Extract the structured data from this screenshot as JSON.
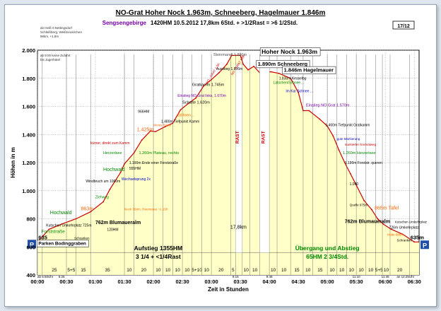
{
  "header": {
    "title": "NO-Grat Hoher Nock 1.963m, Schneeberg, Hagelmauer 1.846m",
    "subtitle_group": "Sengsengebirge",
    "subtitle_rest": "1420HM    10.5.2012    17,8km    6Std. + >1/2Rast = >6 1/2Std.",
    "page_badge": "17/12"
  },
  "side_notes": {
    "top_left": [
      "ab Heiß 0.Nettingsdorf",
      "Schleißberg, Weißneukirchen",
      "96km, +1,8m"
    ],
    "note2": [
      "ab 9:00 keine Zufahrt",
      "bis Jagerhütel"
    ]
  },
  "colors": {
    "profile_fill": "#ffffc8",
    "profile_line": "#cc0000",
    "bar_fill": "#f5f5c0",
    "grid": "#888888",
    "label_green": "#008800",
    "label_orange": "#ff6600",
    "label_purple": "#7700aa",
    "label_blue": "#0000cc",
    "label_red": "#cc0000"
  },
  "chart_data": {
    "type": "area",
    "ylabel": "Höhen in m",
    "xlabel": "Zeit in Stunden",
    "ylim": [
      400,
      2000
    ],
    "xlim": [
      0,
      395
    ],
    "yticks": [
      "400",
      "600",
      "800",
      "1.000",
      "1.200",
      "1.400",
      "1.600",
      "1.800",
      "2.000"
    ],
    "ytick_values": [
      400,
      600,
      800,
      1000,
      1200,
      1400,
      1600,
      1800,
      2000
    ],
    "xticks": [
      "00:00",
      "00:30",
      "01:00",
      "01:30",
      "02:00",
      "02:30",
      "03:00",
      "03:30",
      "04:00",
      "04:30",
      "05:00",
      "05:30",
      "06:00",
      "06:30"
    ],
    "xtick_values": [
      0,
      30,
      60,
      90,
      120,
      150,
      180,
      210,
      240,
      270,
      300,
      330,
      360,
      390
    ],
    "time_labels": [
      "ab 5:50Uhr",
      "6:25",
      "9:15",
      "9:48",
      "11:10",
      "11:45",
      "an 12:25Uhr"
    ],
    "time_label_values": [
      0,
      25,
      205,
      240,
      330,
      360,
      390
    ],
    "profile": [
      {
        "t": 0,
        "h": 635
      },
      {
        "t": 6,
        "h": 680
      },
      {
        "t": 12,
        "h": 725
      },
      {
        "t": 25,
        "h": 762
      },
      {
        "t": 40,
        "h": 800
      },
      {
        "t": 55,
        "h": 850
      },
      {
        "t": 68,
        "h": 920
      },
      {
        "t": 75,
        "h": 1010
      },
      {
        "t": 86,
        "h": 1130
      },
      {
        "t": 90,
        "h": 1190
      },
      {
        "t": 100,
        "h": 1270
      },
      {
        "t": 108,
        "h": 1360
      },
      {
        "t": 117,
        "h": 1425
      },
      {
        "t": 122,
        "h": 1420
      },
      {
        "t": 132,
        "h": 1455
      },
      {
        "t": 140,
        "h": 1480
      },
      {
        "t": 148,
        "h": 1575
      },
      {
        "t": 156,
        "h": 1620
      },
      {
        "t": 164,
        "h": 1660
      },
      {
        "t": 172,
        "h": 1745
      },
      {
        "t": 180,
        "h": 1790
      },
      {
        "t": 188,
        "h": 1840
      },
      {
        "t": 196,
        "h": 1900
      },
      {
        "t": 201,
        "h": 1963
      },
      {
        "t": 205,
        "h": 1963
      },
      {
        "t": 210,
        "h": 1963
      },
      {
        "t": 213,
        "h": 1900
      },
      {
        "t": 218,
        "h": 1860
      },
      {
        "t": 224,
        "h": 1885
      },
      {
        "t": 230,
        "h": 1840
      },
      {
        "t": 236,
        "h": 1846
      },
      {
        "t": 242,
        "h": 1846
      },
      {
        "t": 250,
        "h": 1835
      },
      {
        "t": 262,
        "h": 1800
      },
      {
        "t": 270,
        "h": 1700
      },
      {
        "t": 275,
        "h": 1570
      },
      {
        "t": 281,
        "h": 1570
      },
      {
        "t": 292,
        "h": 1510
      },
      {
        "t": 300,
        "h": 1460
      },
      {
        "t": 306,
        "h": 1390
      },
      {
        "t": 312,
        "h": 1290
      },
      {
        "t": 318,
        "h": 1200
      },
      {
        "t": 324,
        "h": 1120
      },
      {
        "t": 330,
        "h": 1040
      },
      {
        "t": 338,
        "h": 930
      },
      {
        "t": 346,
        "h": 865
      },
      {
        "t": 352,
        "h": 800
      },
      {
        "t": 358,
        "h": 762
      },
      {
        "t": 366,
        "h": 726
      },
      {
        "t": 378,
        "h": 690
      },
      {
        "t": 390,
        "h": 635
      },
      {
        "t": 395,
        "h": 635
      }
    ],
    "segments": [
      {
        "t0": 0,
        "t1": 5,
        "label": ""
      },
      {
        "t0": 5,
        "t1": 30,
        "label": "25"
      },
      {
        "t0": 30,
        "t1": 40,
        "label": "5+5"
      },
      {
        "t0": 40,
        "t1": 55,
        "label": "15"
      },
      {
        "t0": 55,
        "t1": 90,
        "label": "35"
      },
      {
        "t0": 90,
        "t1": 100,
        "label": "10"
      },
      {
        "t0": 100,
        "t1": 120,
        "label": "20"
      },
      {
        "t0": 120,
        "t1": 130,
        "label": "10"
      },
      {
        "t0": 130,
        "t1": 140,
        "label": "10"
      },
      {
        "t0": 140,
        "t1": 150,
        "label": "10"
      },
      {
        "t0": 150,
        "t1": 160,
        "label": "10"
      },
      {
        "t0": 160,
        "t1": 170,
        "label": "5+10"
      },
      {
        "t0": 170,
        "t1": 180,
        "label": "10"
      },
      {
        "t0": 180,
        "t1": 200,
        "label": "20"
      },
      {
        "t0": 200,
        "t1": 205,
        "label": "5"
      },
      {
        "t0": 205,
        "t1": 212,
        "label": ""
      },
      {
        "t0": 212,
        "t1": 220,
        "label": "10"
      },
      {
        "t0": 220,
        "t1": 230,
        "label": "10"
      },
      {
        "t0": 230,
        "t1": 240,
        "label": ""
      },
      {
        "t0": 240,
        "t1": 248,
        "label": "10"
      },
      {
        "t0": 248,
        "t1": 262,
        "label": "10"
      },
      {
        "t0": 262,
        "t1": 275,
        "label": "15"
      },
      {
        "t0": 275,
        "t1": 285,
        "label": "10"
      },
      {
        "t0": 285,
        "t1": 300,
        "label": "15"
      },
      {
        "t0": 300,
        "t1": 310,
        "label": "10"
      },
      {
        "t0": 310,
        "t1": 320,
        "label": "10"
      },
      {
        "t0": 320,
        "t1": 330,
        "label": "10"
      },
      {
        "t0": 330,
        "t1": 340,
        "label": "10"
      },
      {
        "t0": 340,
        "t1": 350,
        "label": "10"
      },
      {
        "t0": 350,
        "t1": 357,
        "label": "5+5"
      },
      {
        "t0": 357,
        "t1": 365,
        "label": "10"
      },
      {
        "t0": 365,
        "t1": 385,
        "label": "20"
      },
      {
        "t0": 385,
        "t1": 395,
        "label": ""
      }
    ],
    "rast_zones": [
      {
        "t0": 205,
        "t1": 212
      },
      {
        "t0": 230,
        "t1": 240
      }
    ],
    "rast_label": "RAST",
    "distance_label": "17,8km",
    "summary_left": [
      "Aufstieg 1355HM",
      "3 1/4 + <1/4Rast"
    ],
    "summary_right": [
      "Übergang und Abstieg",
      "65HM   2 3/4Std."
    ],
    "annotations": [
      {
        "t": 232,
        "h": 1975,
        "text": "Hoher Nock 1.963m",
        "color": "#000000",
        "size": 8.5,
        "bold": true,
        "box": true
      },
      {
        "t": 228,
        "h": 1890,
        "text": "1.890m Schneeberg",
        "color": "#000000",
        "size": 7.5,
        "bold": true,
        "box": true
      },
      {
        "t": 255,
        "h": 1846,
        "text": "1.846m Hagelmauer",
        "color": "#000000",
        "size": 7.5,
        "bold": true,
        "box": true
      },
      {
        "t": 182,
        "h": 1960,
        "text": "Steinmandl 1.880m",
        "color": "#555555",
        "size": 5.5
      },
      {
        "t": 185,
        "h": 1858,
        "text": "Ausstieg 1.856m",
        "color": "#000000",
        "size": 5
      },
      {
        "t": 160,
        "h": 1745,
        "text": "Gratkamm 1.745m",
        "color": "#000000",
        "size": 5.5
      },
      {
        "t": 150,
        "h": 1620,
        "text": "Scharte 1.620m",
        "color": "#000000",
        "size": 5.5
      },
      {
        "t": 145,
        "h": 1667,
        "text": "Einstieg NO Grat links, 1.670m",
        "color": "#7700aa",
        "size": 5
      },
      {
        "t": 145,
        "h": 1530,
        "text": "Stöhnen…",
        "color": "#ff6600",
        "size": 5
      },
      {
        "t": 128,
        "h": 1485,
        "text": "1.480m Tiefpunkt Kamm",
        "color": "#000000",
        "size": 5
      },
      {
        "t": 120,
        "h": 1460,
        "text": "Weiss Ruine …",
        "color": "#ff6600",
        "size": 4.5
      },
      {
        "t": 104,
        "h": 1555,
        "text": "966HM",
        "color": "#000000",
        "size": 5
      },
      {
        "t": 103,
        "h": 1425,
        "text": "1.425m",
        "color": "#ff6600",
        "size": 7
      },
      {
        "t": 55,
        "h": 1330,
        "text": "kürzer, direkt zum Kamm",
        "color": "#cc0000",
        "size": 5
      },
      {
        "t": 68,
        "h": 1260,
        "text": "Herzerlsee",
        "color": "#008800",
        "size": 5.5
      },
      {
        "t": 105,
        "h": 1260,
        "text": "1.260m Plateau, rechts",
        "color": "#008800",
        "size": 5.5
      },
      {
        "t": 68,
        "h": 1140,
        "text": "Hochwald",
        "color": "#008800",
        "size": 7
      },
      {
        "t": 95,
        "h": 1190,
        "text": "1.190m Ende einer Forststraße",
        "color": "#000000",
        "size": 5
      },
      {
        "t": 95,
        "h": 1150,
        "text": "555HM",
        "color": "#000000",
        "size": 5
      },
      {
        "t": 87,
        "h": 1075,
        "text": "Wechselsprung 2x",
        "color": "#0000cc",
        "size": 5
      },
      {
        "t": 50,
        "h": 1060,
        "text": "Windbruch um 1060m",
        "color": "#000000",
        "size": 5
      },
      {
        "t": 60,
        "h": 945,
        "text": "Ziehweg",
        "color": "#008800",
        "size": 5
      },
      {
        "t": 45,
        "h": 860,
        "text": "863m",
        "color": "#ff6600",
        "size": 7
      },
      {
        "t": 90,
        "h": 860,
        "text": "Nock 360m, Raumerau ~1.15h",
        "color": "#ff6600",
        "size": 4.5
      },
      {
        "t": 13,
        "h": 832,
        "text": "Hochwald",
        "color": "#008800",
        "size": 7
      },
      {
        "t": 60,
        "h": 762,
        "text": "762m Blumaueralm",
        "color": "#000000",
        "size": 7,
        "bold": true
      },
      {
        "t": 72,
        "h": 715,
        "text": "120HM",
        "color": "#000000",
        "size": 5
      },
      {
        "t": 9,
        "h": 745,
        "text": "Kutschen Umkehrplatz 725m",
        "color": "#000000",
        "size": 5
      },
      {
        "t": 4,
        "h": 700,
        "text": "Forststraße",
        "color": "#008800",
        "size": 6.5
      },
      {
        "t": 1,
        "h": 655,
        "text": "635",
        "color": "#000000",
        "size": 7.5,
        "bold": true
      },
      {
        "t": 1,
        "h": 615,
        "text": "Parken Bodinggraben",
        "color": "#000000",
        "size": 6.5,
        "bold": true,
        "box": true
      },
      {
        "t": 38,
        "h": 655,
        "text": "Schranken",
        "color": "#000000",
        "size": 4.5
      },
      {
        "t": 250,
        "h": 1790,
        "text": "1.830m Kesselbg",
        "color": "#000000",
        "size": 5
      },
      {
        "t": 244,
        "h": 1760,
        "text": "Latschen/Schnee…",
        "color": "#008800",
        "size": 5
      },
      {
        "t": 257,
        "h": 1700,
        "text": "Im Kar Schnee …",
        "color": "#0000cc",
        "size": 5
      },
      {
        "t": 278,
        "h": 1600,
        "text": "Einstieg NO Grat 1.570m",
        "color": "#7700aa",
        "size": 5.5
      },
      {
        "t": 298,
        "h": 1460,
        "text": "1.460m Tiefpunkt Gratkamm",
        "color": "#000000",
        "size": 5
      },
      {
        "t": 310,
        "h": 1360,
        "text": "gute Markierung",
        "color": "#0000cc",
        "size": 4.5
      },
      {
        "t": 318,
        "h": 1320,
        "text": "markierter Normalweg",
        "color": "#cc0000",
        "size": 4.5
      },
      {
        "t": 316,
        "h": 1260,
        "text": "1.260m Herzerlsee",
        "color": "#008800",
        "size": 5.5
      },
      {
        "t": 318,
        "h": 1190,
        "text": "1.190m Forststr. queren",
        "color": "#000000",
        "size": 5
      },
      {
        "t": 323,
        "h": 1040,
        "text": "1.040",
        "color": "#000000",
        "size": 5
      },
      {
        "t": 323,
        "h": 890,
        "text": "Quelle 975m",
        "color": "#000000",
        "size": 4.5
      },
      {
        "t": 349,
        "h": 865,
        "text": "865m Tafel",
        "color": "#ff6600",
        "size": 7
      },
      {
        "t": 318,
        "h": 770,
        "text": "762m Blumaueralm",
        "color": "#000000",
        "size": 7,
        "bold": true
      },
      {
        "t": 370,
        "h": 770,
        "text": "Kutschen Umkehrplatz",
        "color": "#000000",
        "size": 4.5
      },
      {
        "t": 364,
        "h": 730,
        "text": "726m Umkehrplatz",
        "color": "#000000",
        "size": 5
      },
      {
        "t": 362,
        "h": 680,
        "text": "Hütte 880m",
        "color": "#ff6600",
        "size": 4.5
      },
      {
        "t": 372,
        "h": 640,
        "text": "Schranken",
        "color": "#000000",
        "size": 4.5
      },
      {
        "t": 386,
        "h": 655,
        "text": "635m",
        "color": "#000000",
        "size": 7.5,
        "bold": true
      }
    ],
    "parking_markers": [
      {
        "t": 0,
        "h": 620,
        "label": "P"
      },
      {
        "t": 393,
        "h": 615,
        "label": "P"
      }
    ]
  }
}
